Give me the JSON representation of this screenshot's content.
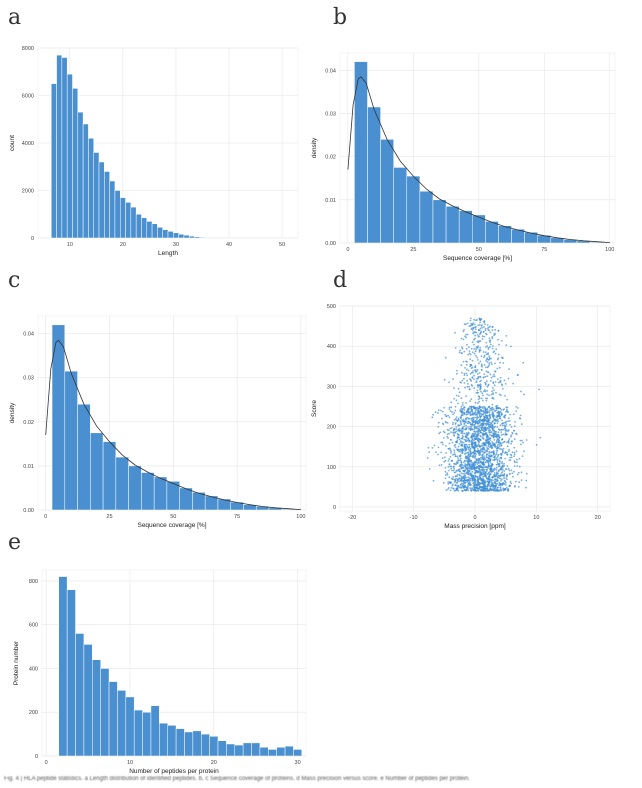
{
  "panels": [
    {
      "letter": "a"
    },
    {
      "letter": "b"
    },
    {
      "letter": "c"
    },
    {
      "letter": "d"
    },
    {
      "letter": "e"
    }
  ],
  "caption": "Fig. 4 | HLA peptide statistics. a Length distribution of identified peptides. b, c Sequence coverage of proteins. d Mass precision versus score. e Number of peptides per protein.",
  "colors": {
    "bar": "#4a90d0",
    "bar_edge": "#ffffff",
    "curve": "#333333",
    "grid": "#e6e6e6",
    "point": "#3f8fd6"
  },
  "chart_data": [
    {
      "type": "bar",
      "xlabel": "Length",
      "ylabel": "count",
      "xlim": [
        4,
        53
      ],
      "ylim": [
        0,
        8000
      ],
      "xticks": [
        10,
        20,
        30,
        40,
        50
      ],
      "yticks": [
        0,
        2000,
        4000,
        6000,
        8000
      ],
      "bin_width": 1,
      "x": [
        7,
        8,
        9,
        10,
        11,
        12,
        13,
        14,
        15,
        16,
        17,
        18,
        19,
        20,
        21,
        22,
        23,
        24,
        25,
        26,
        27,
        28,
        29,
        30,
        31,
        32,
        33,
        34,
        35
      ],
      "values": [
        6500,
        7700,
        7600,
        6900,
        6300,
        5300,
        4800,
        4200,
        3600,
        3200,
        2800,
        2400,
        2000,
        1700,
        1500,
        1300,
        1000,
        850,
        700,
        600,
        450,
        350,
        280,
        220,
        160,
        120,
        80,
        50,
        30
      ]
    },
    {
      "type": "bar",
      "xlabel": "Sequence coverage [%]",
      "ylabel": "density",
      "xlim": [
        -3,
        102
      ],
      "ylim": [
        0,
        0.044
      ],
      "xticks": [
        0,
        25,
        50,
        75,
        100
      ],
      "yticks": [
        0.0,
        0.01,
        0.02,
        0.03,
        0.04
      ],
      "bin_width": 5,
      "x": [
        5,
        10,
        15,
        20,
        25,
        30,
        35,
        40,
        45,
        50,
        55,
        60,
        65,
        70,
        75,
        80,
        85,
        90,
        95
      ],
      "values": [
        0.042,
        0.0315,
        0.024,
        0.0175,
        0.0155,
        0.012,
        0.01,
        0.0085,
        0.0075,
        0.0065,
        0.005,
        0.004,
        0.0032,
        0.0025,
        0.0018,
        0.0012,
        0.0008,
        0.0005,
        0.0002
      ],
      "density_x": [
        0,
        2,
        4,
        5,
        7,
        10,
        15,
        20,
        25,
        30,
        35,
        40,
        45,
        50,
        55,
        60,
        65,
        70,
        75,
        80,
        85,
        90,
        95,
        100
      ],
      "density_y": [
        0.017,
        0.032,
        0.038,
        0.0385,
        0.037,
        0.031,
        0.024,
        0.019,
        0.0155,
        0.0125,
        0.0102,
        0.0086,
        0.0072,
        0.006,
        0.0048,
        0.0038,
        0.003,
        0.0023,
        0.0017,
        0.0012,
        0.0008,
        0.0005,
        0.0003,
        0.0001
      ]
    },
    {
      "type": "bar",
      "xlabel": "Sequence coverage [%]",
      "ylabel": "density",
      "xlim": [
        -3,
        102
      ],
      "ylim": [
        0,
        0.044
      ],
      "xticks": [
        0,
        25,
        50,
        75,
        100
      ],
      "yticks": [
        0.0,
        0.01,
        0.02,
        0.03,
        0.04
      ],
      "bin_width": 5,
      "x": [
        5,
        10,
        15,
        20,
        25,
        30,
        35,
        40,
        45,
        50,
        55,
        60,
        65,
        70,
        75,
        80,
        85,
        90,
        95
      ],
      "values": [
        0.042,
        0.0315,
        0.024,
        0.0175,
        0.0155,
        0.012,
        0.01,
        0.0085,
        0.0075,
        0.0065,
        0.005,
        0.004,
        0.0032,
        0.0025,
        0.0018,
        0.0012,
        0.0008,
        0.0005,
        0.0002
      ],
      "density_x": [
        0,
        2,
        4,
        5,
        7,
        10,
        15,
        20,
        25,
        30,
        35,
        40,
        45,
        50,
        55,
        60,
        65,
        70,
        75,
        80,
        85,
        90,
        95,
        100
      ],
      "density_y": [
        0.017,
        0.032,
        0.038,
        0.0385,
        0.037,
        0.031,
        0.024,
        0.019,
        0.0155,
        0.0125,
        0.0102,
        0.0086,
        0.0072,
        0.006,
        0.0048,
        0.0038,
        0.003,
        0.0023,
        0.0017,
        0.0012,
        0.0008,
        0.0005,
        0.0003,
        0.0001
      ]
    },
    {
      "type": "scatter",
      "xlabel": "Mass precision [ppm]",
      "ylabel": "Score",
      "xlim": [
        -22,
        22
      ],
      "ylim": [
        -10,
        500
      ],
      "xticks": [
        -20,
        -10,
        0,
        10,
        20
      ],
      "yticks": [
        0,
        100,
        200,
        300,
        400,
        500
      ],
      "cloud": {
        "x_center": 0.8,
        "x_spread": 2.8,
        "y_min": 40,
        "y_center": 170,
        "y_max": 470
      }
    },
    {
      "type": "bar",
      "xlabel": "Number of peptides per protein",
      "ylabel": "Protein number",
      "xlim": [
        -0.5,
        31
      ],
      "ylim": [
        0,
        850
      ],
      "xticks": [
        0,
        10,
        20,
        30
      ],
      "yticks": [
        0,
        200,
        400,
        600,
        800
      ],
      "bin_width": 1,
      "x": [
        2,
        3,
        4,
        5,
        6,
        7,
        8,
        9,
        10,
        11,
        12,
        13,
        14,
        15,
        16,
        17,
        18,
        19,
        20,
        21,
        22,
        23,
        24,
        25,
        26,
        27,
        28,
        29,
        30
      ],
      "values": [
        820,
        760,
        560,
        510,
        440,
        400,
        340,
        300,
        270,
        210,
        200,
        230,
        150,
        140,
        125,
        110,
        115,
        100,
        90,
        70,
        55,
        50,
        60,
        60,
        40,
        30,
        40,
        45,
        30
      ]
    }
  ]
}
